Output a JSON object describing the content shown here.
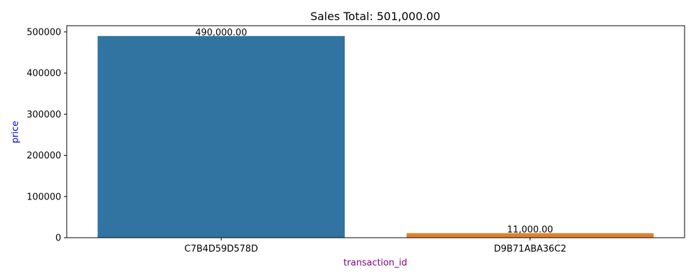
{
  "chart_data": {
    "type": "bar",
    "title": "Sales Total: 501,000.00",
    "xlabel": "transaction_id",
    "ylabel": "price",
    "xlabel_color": "#800080",
    "ylabel_color": "#0000ff",
    "categories": [
      "C7B4D59D578D",
      "D9B71ABA36C2"
    ],
    "values": [
      490000,
      11000
    ],
    "value_labels": [
      "490,000.00",
      "11,000.00"
    ],
    "bar_colors": [
      "#3274a1",
      "#e1812c"
    ],
    "ylim": [
      0,
      515000
    ],
    "yticks": [
      0,
      100000,
      200000,
      300000,
      400000,
      500000
    ],
    "ytick_labels": [
      "0",
      "100000",
      "200000",
      "300000",
      "400000",
      "500000"
    ],
    "grid": false,
    "legend": "none"
  }
}
